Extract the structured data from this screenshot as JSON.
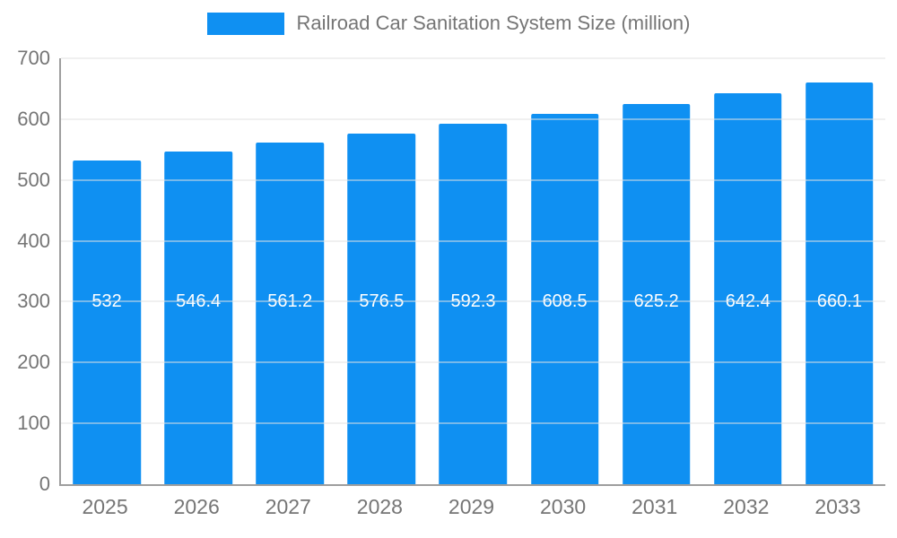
{
  "legend": {
    "label": "Railroad Car Sanitation System Size (million)"
  },
  "colors": {
    "bar": "#0f90f2",
    "axis_text": "#757575",
    "value_label": "#ffffff",
    "gridline": "#e2e2e2",
    "axis_line": "#9e9e9e"
  },
  "chart_data": {
    "type": "bar",
    "title": "Railroad Car Sanitation System Size (million)",
    "categories": [
      "2025",
      "2026",
      "2027",
      "2028",
      "2029",
      "2030",
      "2031",
      "2032",
      "2033"
    ],
    "values": [
      532,
      546.4,
      561.2,
      576.5,
      592.3,
      608.5,
      625.2,
      642.4,
      660.1
    ],
    "value_labels": [
      "532",
      "546.4",
      "561.2",
      "576.5",
      "592.3",
      "608.5",
      "625.2",
      "642.4",
      "660.1"
    ],
    "xlabel": "",
    "ylabel": "",
    "ylim": [
      0,
      700
    ],
    "yticks": [
      0,
      100,
      200,
      300,
      400,
      500,
      600,
      700
    ],
    "grid": true,
    "legend_position": "top",
    "bar_color": "#0f90f2",
    "value_label_y": 300
  }
}
